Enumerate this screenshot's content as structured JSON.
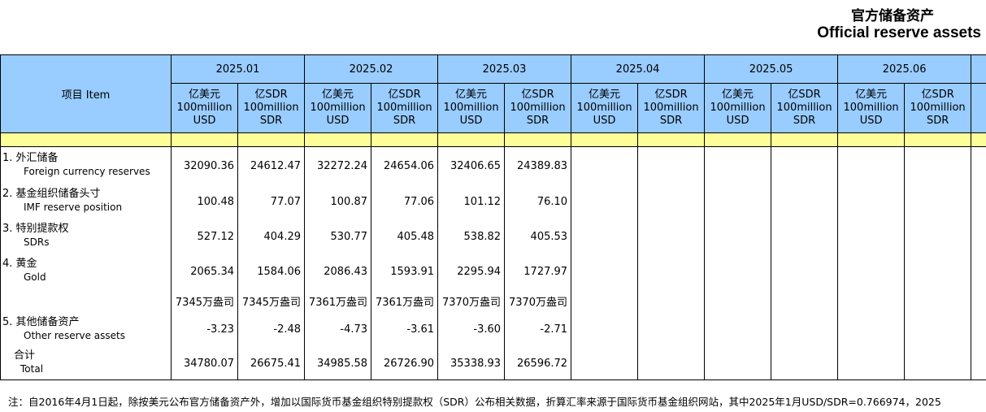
{
  "title": {
    "zh": "官方储备资产",
    "en": "Official reserve assets"
  },
  "table": {
    "item_header": "项目  Item",
    "periods": [
      "2025.01",
      "2025.02",
      "2025.03",
      "2025.04",
      "2025.05",
      "2025.06"
    ],
    "units": [
      {
        "zh": "亿美元",
        "en": "100million USD"
      },
      {
        "zh": "亿SDR",
        "en": "100million SDR"
      }
    ],
    "rows": [
      {
        "label_zh": "1.  外汇储备",
        "label_en": "Foreign currency reserves",
        "values": [
          "32090.36",
          "24612.47",
          "32272.24",
          "24654.06",
          "32406.65",
          "24389.83"
        ]
      },
      {
        "label_zh": "2.  基金组织储备头寸",
        "label_en": "IMF reserve position",
        "values": [
          "100.48",
          "77.07",
          "100.87",
          "77.06",
          "101.12",
          "76.10"
        ]
      },
      {
        "label_zh": "3.  特别提款权",
        "label_en": "SDRs",
        "values": [
          "527.12",
          "404.29",
          "530.77",
          "405.48",
          "538.82",
          "405.53"
        ]
      },
      {
        "label_zh": "4.  黄金",
        "label_en": "Gold",
        "values": [
          "2065.34",
          "1584.06",
          "2086.43",
          "1593.91",
          "2295.94",
          "1727.97"
        ]
      },
      {
        "values": [
          "7345万盎司",
          "7345万盎司",
          "7361万盎司",
          "7361万盎司",
          "7370万盎司",
          "7370万盎司"
        ]
      },
      {
        "label_zh": "5.  其他储备资产",
        "label_en": "Other reserve assets",
        "values": [
          "-3.23",
          "-2.48",
          "-4.73",
          "-3.61",
          "-3.60",
          "-2.71"
        ]
      },
      {
        "label_zh": "合计",
        "label_en": "Total",
        "values": [
          "34780.07",
          "26675.41",
          "34985.58",
          "26726.90",
          "35338.93",
          "26596.72"
        ],
        "total": true
      }
    ]
  },
  "footnote": "注：自2016年4月1日起，除按美元公布官方储备资产外，增加以国际货币基金组织特别提款权（SDR）公布相关数据，折算汇率来源于国际货币基金组织网站，其中2025年1月USD/SDR=0.766974，2025"
}
